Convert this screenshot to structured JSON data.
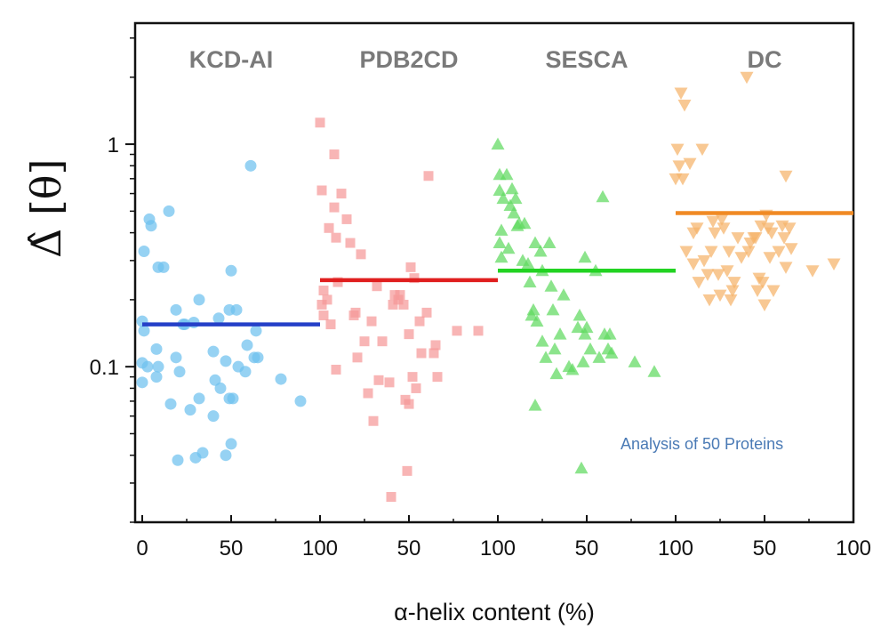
{
  "chart_data": {
    "type": "scatter",
    "title": "",
    "xlabel": "α-helix content  (%)",
    "ylabel": "Δ̂ [θ]",
    "yscale": "log",
    "ylim": [
      0.02,
      3.5
    ],
    "y_ticks": [
      {
        "value": 1,
        "label": "1"
      },
      {
        "value": 0.1,
        "label": "0.1"
      }
    ],
    "x_ticks_per_panel": [
      0,
      50,
      100
    ],
    "annotation": "Analysis of 50 Proteins",
    "series": [
      {
        "name": "KCD-AI",
        "marker": "circle",
        "color": "#6ec1ee",
        "mean_color": "#2540c8",
        "mean": 0.155,
        "points": [
          [
            0,
            0.16
          ],
          [
            0,
            0.085
          ],
          [
            0,
            0.104
          ],
          [
            1,
            0.145
          ],
          [
            1,
            0.33
          ],
          [
            3,
            0.1
          ],
          [
            4,
            0.46
          ],
          [
            5,
            0.43
          ],
          [
            8,
            0.09
          ],
          [
            8,
            0.12
          ],
          [
            9,
            0.28
          ],
          [
            9,
            0.1
          ],
          [
            12,
            0.28
          ],
          [
            15,
            0.5
          ],
          [
            16,
            0.068
          ],
          [
            19,
            0.11
          ],
          [
            19,
            0.18
          ],
          [
            20,
            0.038
          ],
          [
            21,
            0.095
          ],
          [
            23,
            0.155
          ],
          [
            24,
            0.155
          ],
          [
            27,
            0.064
          ],
          [
            29,
            0.158
          ],
          [
            30,
            0.039
          ],
          [
            32,
            0.2
          ],
          [
            32,
            0.072
          ],
          [
            34,
            0.041
          ],
          [
            40,
            0.117
          ],
          [
            40,
            0.06
          ],
          [
            41,
            0.087
          ],
          [
            43,
            0.165
          ],
          [
            44,
            0.08
          ],
          [
            47,
            0.106
          ],
          [
            47,
            0.04
          ],
          [
            49,
            0.072
          ],
          [
            49,
            0.18
          ],
          [
            50,
            0.27
          ],
          [
            50,
            0.045
          ],
          [
            51,
            0.072
          ],
          [
            53,
            0.18
          ],
          [
            54,
            0.1
          ],
          [
            58,
            0.095
          ],
          [
            59,
            0.125
          ],
          [
            61,
            0.8
          ],
          [
            63,
            0.11
          ],
          [
            64,
            0.145
          ],
          [
            65,
            0.11
          ],
          [
            78,
            0.088
          ],
          [
            89,
            0.07
          ]
        ]
      },
      {
        "name": "PDB2CD",
        "marker": "square",
        "color": "#f59999",
        "mean_color": "#e01e1e",
        "mean": 0.245,
        "points": [
          [
            0,
            1.25
          ],
          [
            1,
            0.62
          ],
          [
            1,
            0.19
          ],
          [
            2,
            0.17
          ],
          [
            2,
            0.22
          ],
          [
            4,
            0.2
          ],
          [
            5,
            0.42
          ],
          [
            6,
            0.155
          ],
          [
            8,
            0.9
          ],
          [
            8,
            0.52
          ],
          [
            9,
            0.38
          ],
          [
            9,
            0.097
          ],
          [
            10,
            0.24
          ],
          [
            12,
            0.6
          ],
          [
            15,
            0.46
          ],
          [
            17,
            0.36
          ],
          [
            19,
            0.17
          ],
          [
            20,
            0.175
          ],
          [
            21,
            0.11
          ],
          [
            23,
            0.32
          ],
          [
            25,
            0.13
          ],
          [
            27,
            0.076
          ],
          [
            29,
            0.16
          ],
          [
            30,
            0.057
          ],
          [
            32,
            0.23
          ],
          [
            33,
            0.087
          ],
          [
            35,
            0.13
          ],
          [
            39,
            0.085
          ],
          [
            41,
            0.19
          ],
          [
            42,
            0.21
          ],
          [
            44,
            0.2
          ],
          [
            45,
            0.21
          ],
          [
            47,
            0.19
          ],
          [
            48,
            0.071
          ],
          [
            49,
            0.034
          ],
          [
            50,
            0.14
          ],
          [
            50,
            0.068
          ],
          [
            51,
            0.28
          ],
          [
            52,
            0.09
          ],
          [
            53,
            0.25
          ],
          [
            54,
            0.08
          ],
          [
            56,
            0.16
          ],
          [
            57,
            0.115
          ],
          [
            60,
            0.175
          ],
          [
            61,
            0.72
          ],
          [
            64,
            0.115
          ],
          [
            65,
            0.125
          ],
          [
            66,
            0.09
          ],
          [
            77,
            0.145
          ],
          [
            89,
            0.145
          ],
          [
            40,
            0.026
          ]
        ]
      },
      {
        "name": "SESCA",
        "marker": "triangle-up",
        "color": "#5fd95f",
        "mean_color": "#22d322",
        "mean": 0.27,
        "points": [
          [
            0,
            1.0
          ],
          [
            1,
            0.73
          ],
          [
            1,
            0.62
          ],
          [
            1,
            0.36
          ],
          [
            2,
            0.31
          ],
          [
            2,
            0.41
          ],
          [
            3,
            0.57
          ],
          [
            5,
            0.73
          ],
          [
            6,
            0.34
          ],
          [
            7,
            0.53
          ],
          [
            8,
            0.63
          ],
          [
            9,
            0.49
          ],
          [
            10,
            0.57
          ],
          [
            11,
            0.43
          ],
          [
            12,
            0.44
          ],
          [
            14,
            0.3
          ],
          [
            15,
            0.44
          ],
          [
            17,
            0.29
          ],
          [
            18,
            0.24
          ],
          [
            19,
            0.17
          ],
          [
            20,
            0.18
          ],
          [
            21,
            0.067
          ],
          [
            21,
            0.36
          ],
          [
            22,
            0.16
          ],
          [
            24,
            0.33
          ],
          [
            25,
            0.27
          ],
          [
            25,
            0.13
          ],
          [
            27,
            0.11
          ],
          [
            29,
            0.36
          ],
          [
            30,
            0.23
          ],
          [
            31,
            0.18
          ],
          [
            32,
            0.12
          ],
          [
            33,
            0.093
          ],
          [
            35,
            0.14
          ],
          [
            37,
            0.21
          ],
          [
            40,
            0.1
          ],
          [
            42,
            0.097
          ],
          [
            45,
            0.15
          ],
          [
            46,
            0.17
          ],
          [
            47,
            0.035
          ],
          [
            48,
            0.105
          ],
          [
            49,
            0.31
          ],
          [
            49,
            0.14
          ],
          [
            50,
            0.15
          ],
          [
            52,
            0.12
          ],
          [
            55,
            0.27
          ],
          [
            57,
            0.11
          ],
          [
            59,
            0.58
          ],
          [
            60,
            0.14
          ],
          [
            62,
            0.12
          ],
          [
            63,
            0.14
          ],
          [
            64,
            0.115
          ],
          [
            77,
            0.105
          ],
          [
            88,
            0.095
          ]
        ]
      },
      {
        "name": "DC",
        "marker": "triangle-down",
        "color": "#f5b36a",
        "mean_color": "#f08a24",
        "mean": 0.49,
        "points": [
          [
            0,
            0.7
          ],
          [
            1,
            0.95
          ],
          [
            2,
            0.8
          ],
          [
            3,
            1.7
          ],
          [
            4,
            0.7
          ],
          [
            5,
            1.5
          ],
          [
            6,
            0.33
          ],
          [
            8,
            0.82
          ],
          [
            10,
            0.29
          ],
          [
            10,
            0.4
          ],
          [
            12,
            0.42
          ],
          [
            13,
            0.24
          ],
          [
            15,
            0.95
          ],
          [
            16,
            0.3
          ],
          [
            18,
            0.26
          ],
          [
            19,
            0.2
          ],
          [
            20,
            0.33
          ],
          [
            21,
            0.45
          ],
          [
            22,
            0.4
          ],
          [
            24,
            0.26
          ],
          [
            25,
            0.21
          ],
          [
            26,
            0.46
          ],
          [
            27,
            0.42
          ],
          [
            29,
            0.27
          ],
          [
            30,
            0.33
          ],
          [
            31,
            0.2
          ],
          [
            32,
            0.22
          ],
          [
            33,
            0.24
          ],
          [
            35,
            0.38
          ],
          [
            37,
            0.31
          ],
          [
            40,
            2.0
          ],
          [
            41,
            0.33
          ],
          [
            42,
            0.36
          ],
          [
            44,
            0.38
          ],
          [
            45,
            0.38
          ],
          [
            46,
            0.22
          ],
          [
            47,
            0.25
          ],
          [
            48,
            0.43
          ],
          [
            49,
            0.24
          ],
          [
            50,
            0.19
          ],
          [
            51,
            0.48
          ],
          [
            52,
            0.42
          ],
          [
            53,
            0.31
          ],
          [
            54,
            0.4
          ],
          [
            55,
            0.22
          ],
          [
            58,
            0.33
          ],
          [
            60,
            0.43
          ],
          [
            61,
            0.38
          ],
          [
            62,
            0.72
          ],
          [
            62,
            0.28
          ],
          [
            64,
            0.42
          ],
          [
            65,
            0.34
          ],
          [
            77,
            0.27
          ],
          [
            89,
            0.29
          ]
        ]
      }
    ]
  }
}
